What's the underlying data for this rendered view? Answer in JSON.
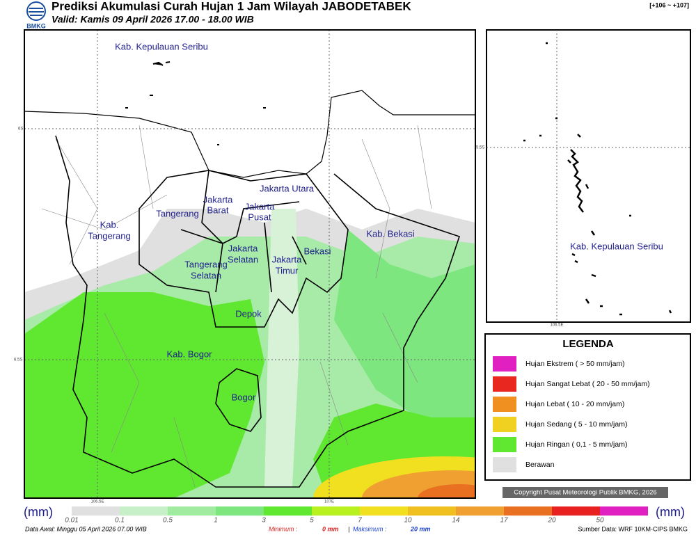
{
  "header": {
    "logo": "BMKG",
    "title": "Prediksi Akumulasi Curah Hujan 1 Jam Wilayah JABODETABEK",
    "valid": "Valid: Kamis 09 April 2026 17.00 - 18.00 WIB",
    "range": "[+106 ~ +107]"
  },
  "map": {
    "labels": [
      [
        "Kab. Kepulauan Seribu"
      ],
      [
        "Jakarta Utara"
      ],
      [
        "Jakarta",
        "Barat"
      ],
      [
        "Jakarta",
        "Pusat"
      ],
      [
        "Tangerang"
      ],
      [
        "Kab.",
        "Tangerang"
      ],
      [
        "Jakarta",
        "Selatan"
      ],
      [
        "Jakarta",
        "Timur"
      ],
      [
        "Bekasi"
      ],
      [
        "Kab. Bekasi"
      ],
      [
        "Tangerang",
        "Selatan"
      ],
      [
        "Depok"
      ],
      [
        "Kab. Bogor"
      ],
      [
        "Bogor"
      ]
    ],
    "lat_labels": [
      "6S",
      "6.5S"
    ],
    "lon_labels": [
      "106.5E",
      "107E"
    ]
  },
  "inset": {
    "label": "Kab. Kepulauan Seribu",
    "lat_label": "5.5S",
    "lon_label": "106.5E"
  },
  "legend": {
    "title": "LEGENDA",
    "items": [
      {
        "label": "Hujan Ekstrem ( > 50 mm/jam)",
        "color": "#e020c0"
      },
      {
        "label": "Hujan Sangat Lebat ( 20 - 50 mm/jam)",
        "color": "#e82820"
      },
      {
        "label": "Hujan Lebat ( 10 - 20 mm/jam)",
        "color": "#f09020"
      },
      {
        "label": "Hujan Sedang ( 5 - 10 mm/jam)",
        "color": "#f0d020"
      },
      {
        "label": "Hujan Ringan ( 0,1 - 5 mm/jam)",
        "color": "#60e830"
      },
      {
        "label": "Berawan",
        "color": "#e0e0e0"
      }
    ]
  },
  "copyright": "Copyright Pusat Meteorologi Publik BMKG, 2026",
  "colorbar": {
    "unit": "(mm)",
    "ticks": [
      0.01,
      0.1,
      0.5,
      1,
      3,
      5,
      7,
      10,
      14,
      17,
      20,
      50
    ],
    "colors": [
      "#e0e0e0",
      "#c8f0c8",
      "#a0eba0",
      "#7ee67e",
      "#60e830",
      "#b8f020",
      "#f0e020",
      "#f0c020",
      "#f0a030",
      "#e87020",
      "#e82020",
      "#e020c0"
    ]
  },
  "footer": {
    "data_awal": "Data Awal: Minggu 05 April 2026 07.00 WIB",
    "min_label": "Minimum :",
    "min_value": "0 mm",
    "separator": "|",
    "max_label": "Maksimum :",
    "max_value": "20 mm",
    "source": "Sumber Data: WRF 10KM-CIPS BMKG"
  }
}
